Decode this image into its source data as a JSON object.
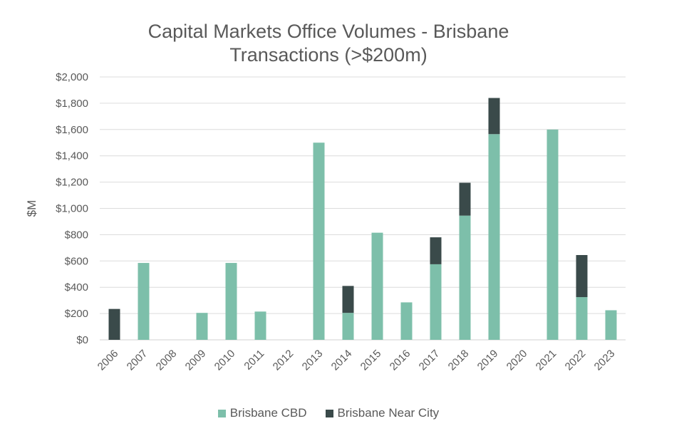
{
  "chart_data": {
    "type": "bar",
    "stacked": true,
    "title_lines": [
      "Capital Markets Office Volumes - Brisbane",
      "Transactions (>$200m)"
    ],
    "ylabel": "$M",
    "xlabel": "",
    "ylim": [
      0,
      2000
    ],
    "y_ticks": [
      0,
      200,
      400,
      600,
      800,
      1000,
      1200,
      1400,
      1600,
      1800,
      2000
    ],
    "y_tick_labels": [
      "$0",
      "$200",
      "$400",
      "$600",
      "$800",
      "$1,000",
      "$1,200",
      "$1,400",
      "$1,600",
      "$1,800",
      "$2,000"
    ],
    "grid": true,
    "legend_position": "bottom",
    "categories": [
      "2006",
      "2007",
      "2008",
      "2009",
      "2010",
      "2011",
      "2012",
      "2013",
      "2014",
      "2015",
      "2016",
      "2017",
      "2018",
      "2019",
      "2020",
      "2021",
      "2022",
      "2023"
    ],
    "series": [
      {
        "name": "Brisbane CBD",
        "color": "#7dbfaa",
        "values": [
          0,
          585,
          0,
          205,
          585,
          215,
          0,
          1500,
          205,
          815,
          285,
          575,
          945,
          1565,
          0,
          1600,
          325,
          225
        ]
      },
      {
        "name": "Brisbane Near City",
        "color": "#3a4a4a",
        "values": [
          235,
          0,
          0,
          0,
          0,
          0,
          0,
          0,
          205,
          0,
          0,
          205,
          250,
          275,
          0,
          0,
          320,
          0
        ]
      }
    ]
  }
}
